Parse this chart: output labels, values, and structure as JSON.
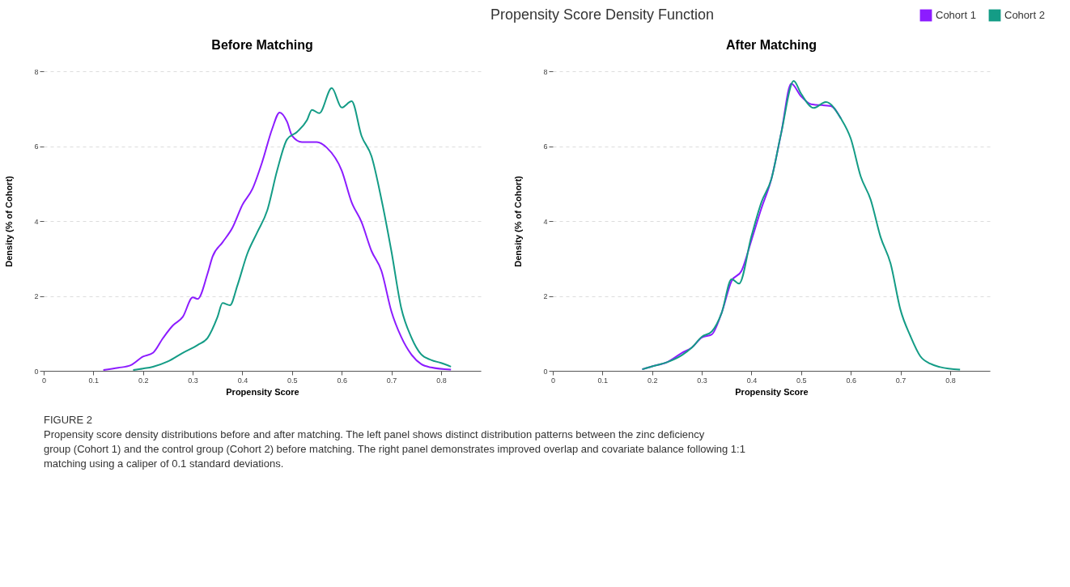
{
  "chart_data": [
    {
      "type": "line",
      "title": "Before Matching",
      "xlabel": "Propensity Score",
      "ylabel": "Density (% of Cohort)",
      "annotations": [
        "Propensity Score Density Function",
        "FIGURE 2",
        "Propensity score density distributions before and after matching. The left panel shows distinct distribution patterns between the zinc deficiency group (Cohort 1) and the control group (Cohort 2) before matching. The right panel demonstrates improved overlap and covariate balance following 1:1 matching using a caliper of 0.1 standard deviations."
      ],
      "xlim": [
        0,
        0.88
      ],
      "xticks": [
        0,
        0.1,
        0.2,
        0.3,
        0.4,
        0.5,
        0.6,
        0.7,
        0.8
      ],
      "ylim": [
        0,
        8
      ],
      "yticks": [
        0,
        2,
        4,
        6,
        8
      ],
      "grid": "y",
      "legend": "top right",
      "marker": "none",
      "line_style": "solid",
      "series": [
        {
          "name": "Cohort 1",
          "color": "#8c1cff",
          "x": [
            0.12,
            0.15,
            0.175,
            0.2,
            0.22,
            0.24,
            0.26,
            0.28,
            0.3,
            0.31,
            0.33,
            0.34,
            0.36,
            0.38,
            0.4,
            0.42,
            0.44,
            0.46,
            0.475,
            0.49,
            0.5,
            0.52,
            0.55,
            0.57,
            0.6,
            0.62,
            0.64,
            0.66,
            0.68,
            0.7,
            0.72,
            0.74,
            0.76,
            0.78,
            0.82
          ],
          "values": [
            0.02,
            0.08,
            0.15,
            0.38,
            0.48,
            0.87,
            1.21,
            1.44,
            1.96,
            1.92,
            2.6,
            3.05,
            3.43,
            3.82,
            4.43,
            4.85,
            5.58,
            6.46,
            6.9,
            6.65,
            6.28,
            6.11,
            6.11,
            5.96,
            5.35,
            4.5,
            3.97,
            3.2,
            2.67,
            1.59,
            0.9,
            0.44,
            0.18,
            0.09,
            0.03
          ]
        },
        {
          "name": "Cohort 2",
          "color": "#149c86",
          "x": [
            0.18,
            0.2,
            0.22,
            0.25,
            0.28,
            0.31,
            0.33,
            0.35,
            0.36,
            0.375,
            0.39,
            0.41,
            0.43,
            0.45,
            0.47,
            0.49,
            0.51,
            0.53,
            0.54,
            0.555,
            0.58,
            0.6,
            0.62,
            0.64,
            0.66,
            0.68,
            0.7,
            0.72,
            0.74,
            0.76,
            0.78,
            0.8,
            0.82
          ],
          "values": [
            0.02,
            0.06,
            0.11,
            0.25,
            0.48,
            0.69,
            0.88,
            1.44,
            1.81,
            1.75,
            2.28,
            3.13,
            3.7,
            4.28,
            5.35,
            6.18,
            6.38,
            6.69,
            6.97,
            6.88,
            7.55,
            7.03,
            7.2,
            6.27,
            5.73,
            4.58,
            3.2,
            1.67,
            0.9,
            0.44,
            0.29,
            0.21,
            0.11
          ]
        }
      ]
    },
    {
      "type": "line",
      "title": "After Matching",
      "xlabel": "Propensity Score",
      "ylabel": "Density (% of Cohort)",
      "xlim": [
        0,
        0.88
      ],
      "xticks": [
        0,
        0.1,
        0.2,
        0.3,
        0.4,
        0.5,
        0.6,
        0.7,
        0.8
      ],
      "ylim": [
        0,
        8
      ],
      "yticks": [
        0,
        2,
        4,
        6,
        8
      ],
      "grid": "y",
      "marker": "none",
      "line_style": "solid",
      "series": [
        {
          "color": "#8c1cff",
          "x": [
            0.18,
            0.2,
            0.23,
            0.26,
            0.28,
            0.3,
            0.32,
            0.34,
            0.36,
            0.38,
            0.4,
            0.42,
            0.44,
            0.46,
            0.48,
            0.5,
            0.52,
            0.56,
            0.58
          ],
          "values": [
            0.04,
            0.12,
            0.23,
            0.48,
            0.62,
            0.89,
            0.97,
            1.55,
            2.4,
            2.67,
            3.49,
            4.34,
            5.12,
            6.36,
            7.67,
            7.33,
            7.12,
            7.07,
            6.74
          ]
        },
        {
          "color": "#149c86",
          "x": [
            0.18,
            0.2,
            0.23,
            0.26,
            0.28,
            0.3,
            0.32,
            0.34,
            0.36,
            0.375,
            0.4,
            0.42,
            0.44,
            0.46,
            0.485,
            0.5,
            0.525,
            0.55,
            0.58,
            0.6,
            0.62,
            0.64,
            0.66,
            0.68,
            0.7,
            0.72,
            0.74,
            0.76,
            0.78,
            0.82
          ],
          "values": [
            0.04,
            0.12,
            0.23,
            0.42,
            0.62,
            0.91,
            1.05,
            1.55,
            2.45,
            2.33,
            3.6,
            4.5,
            5.12,
            6.36,
            7.74,
            7.4,
            7.02,
            7.18,
            6.74,
            6.2,
            5.19,
            4.57,
            3.57,
            2.87,
            1.63,
            0.93,
            0.39,
            0.19,
            0.1,
            0.03
          ]
        }
      ]
    }
  ]
}
